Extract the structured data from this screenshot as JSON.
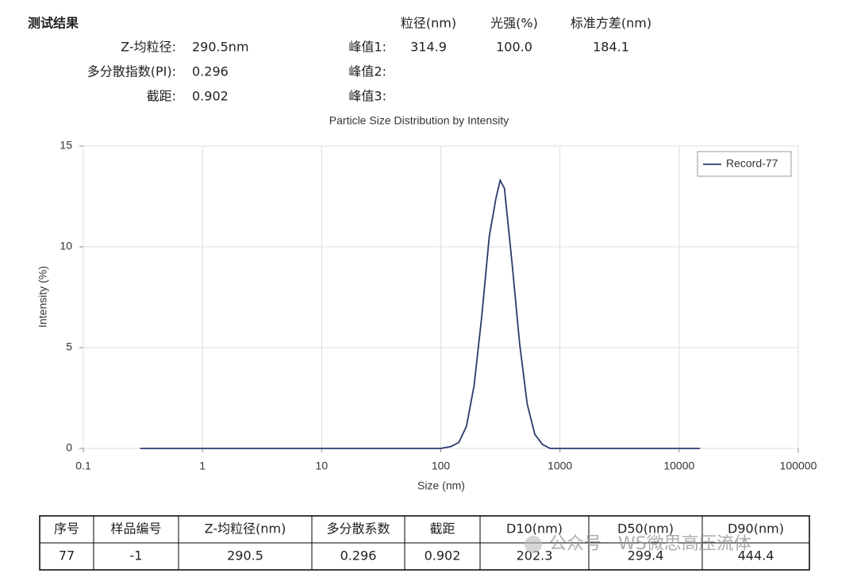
{
  "header": {
    "title": "测试结果",
    "summary": [
      {
        "label": "Z-均粒径:",
        "value": "290.5nm"
      },
      {
        "label": "多分散指数(PI):",
        "value": "0.296"
      },
      {
        "label": "截距:",
        "value": "0.902"
      }
    ],
    "peak_columns": [
      "粒径(nm)",
      "光强(%)",
      "标准方差(nm)"
    ],
    "peaks": [
      {
        "label": "峰值1:",
        "values": [
          "314.9",
          "100.0",
          "184.1"
        ]
      },
      {
        "label": "峰值2:"
      },
      {
        "label": "峰值3:"
      }
    ]
  },
  "chart_data": {
    "type": "line",
    "title": "Particle Size Distribution by Intensity",
    "x_label": "Size (nm)",
    "y_label": "Intensity (%)",
    "log_x": true,
    "grid": true,
    "legend": "upper right",
    "xlim": [
      0.1,
      100000
    ],
    "xticks": [
      0.1,
      1,
      10,
      100,
      1000,
      10000,
      100000
    ],
    "ylim": [
      0,
      15
    ],
    "yticks": [
      0,
      5,
      10,
      15
    ],
    "series": [
      {
        "name": "Record-77",
        "color": "#2b3a6b",
        "x": [
          0.3,
          100,
          122.4,
          141.8,
          164.2,
          190.1,
          220.2,
          255,
          290,
          315,
          342,
          396.1,
          458.7,
          531.2,
          615.1,
          712.4,
          825,
          1000,
          15000
        ],
        "values": [
          0,
          0,
          0.1,
          0.3,
          1.1,
          3.1,
          6.5,
          10.5,
          12.4,
          13.3,
          12.9,
          9.2,
          5.2,
          2.2,
          0.7,
          0.2,
          0,
          0,
          0
        ]
      }
    ]
  },
  "table": {
    "headers": [
      "序号",
      "样品编号",
      "Z-均粒径(nm)",
      "多分散系数",
      "截距",
      "D10(nm)",
      "D50(nm)",
      "D90(nm)"
    ],
    "rows": [
      [
        "77",
        "-1",
        "290.5",
        "0.296",
        "0.902",
        "202.3",
        "299.4",
        "444.4"
      ]
    ]
  },
  "watermark": "公众号 · WS微思高压流体"
}
